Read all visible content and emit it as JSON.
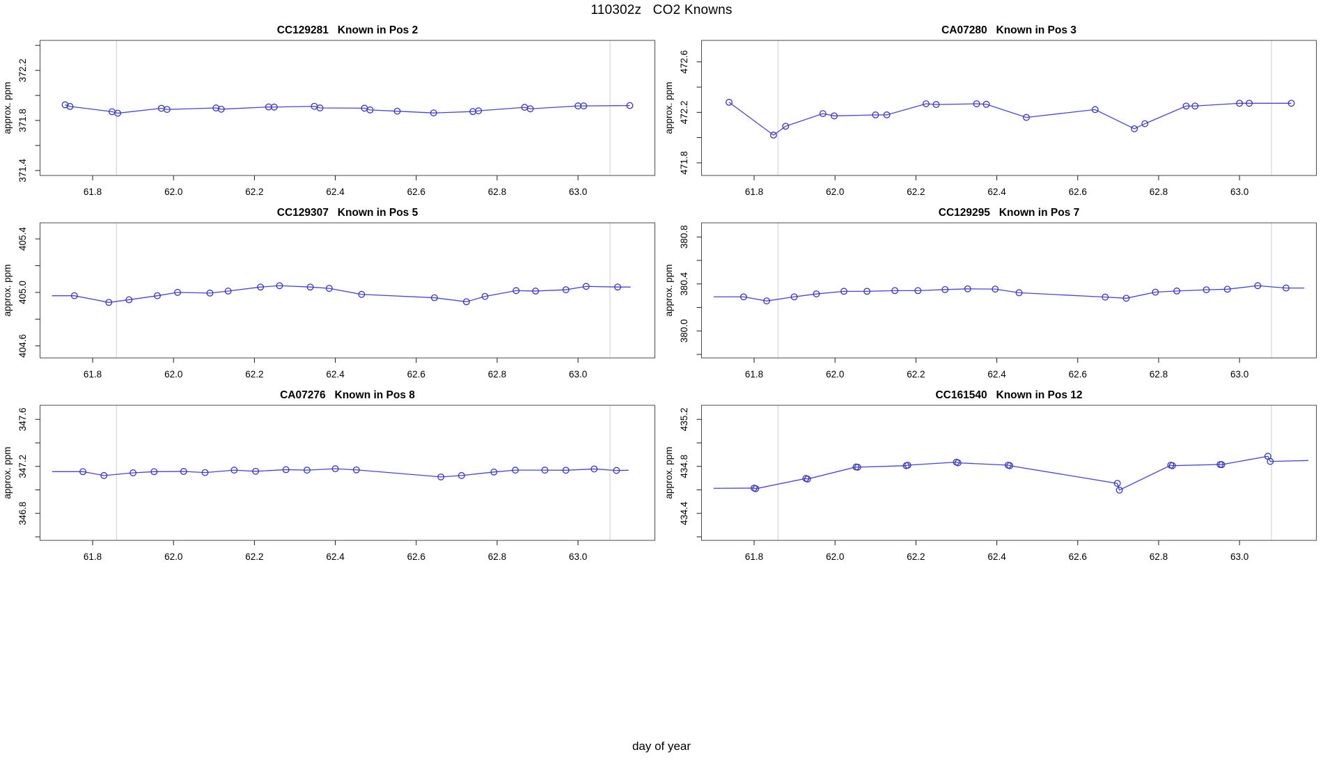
{
  "figure": {
    "title": "110302z   CO2 Knowns",
    "xlabel": "day of year",
    "background": "#ffffff"
  },
  "style": {
    "line_color": "#4343de",
    "marker_color": "#3333cf",
    "ref_line_color": "#d6d6d6",
    "frame_color": "#4a4a4a",
    "tick_color": "#1a1a1a",
    "text_color": "#000000"
  },
  "chart_data": [
    {
      "type": "line",
      "title": "CC129281   Known in Pos 2",
      "ylabel": "approx. ppm",
      "xlabel": "day of year",
      "grid": false,
      "legend": null,
      "xlim": [
        61.67,
        63.19
      ],
      "ylim": [
        371.36,
        372.44
      ],
      "x_ticks": [
        61.8,
        62.0,
        62.2,
        62.4,
        62.6,
        62.8,
        63.0
      ],
      "y_ticks_labeled": [
        371.4,
        371.8,
        372.2
      ],
      "y_tick_step": 0.2,
      "ref_lines_x": [
        61.859,
        63.079
      ],
      "lead": null,
      "tail": null,
      "points": [
        [
          61.732,
          371.925
        ],
        [
          61.744,
          371.912
        ],
        [
          61.848,
          371.87
        ],
        [
          61.862,
          371.858
        ],
        [
          61.97,
          371.897
        ],
        [
          61.984,
          371.888
        ],
        [
          62.105,
          371.9
        ],
        [
          62.118,
          371.89
        ],
        [
          62.235,
          371.908
        ],
        [
          62.249,
          371.907
        ],
        [
          62.348,
          371.913
        ],
        [
          62.362,
          371.9
        ],
        [
          62.472,
          371.898
        ],
        [
          62.486,
          371.884
        ],
        [
          62.553,
          371.874
        ],
        [
          62.643,
          371.86
        ],
        [
          62.74,
          371.871
        ],
        [
          62.754,
          371.877
        ],
        [
          62.868,
          371.905
        ],
        [
          62.882,
          371.893
        ],
        [
          63.0,
          371.916
        ],
        [
          63.014,
          371.916
        ],
        [
          63.128,
          371.919
        ]
      ]
    },
    {
      "type": "line",
      "title": "CA07280   Known in Pos 3",
      "ylabel": "approx. ppm",
      "xlabel": "day of year",
      "grid": false,
      "legend": null,
      "xlim": [
        61.67,
        63.19
      ],
      "ylim": [
        471.7,
        472.77
      ],
      "x_ticks": [
        61.8,
        62.0,
        62.2,
        62.4,
        62.6,
        62.8,
        63.0
      ],
      "y_ticks_labeled": [
        471.8,
        472.2,
        472.6
      ],
      "y_tick_step": 0.2,
      "ref_lines_x": [
        61.859,
        63.079
      ],
      "lead": null,
      "tail": null,
      "points": [
        [
          61.738,
          472.28
        ],
        [
          61.848,
          472.02
        ],
        [
          61.878,
          472.09
        ],
        [
          61.97,
          472.19
        ],
        [
          61.998,
          472.172
        ],
        [
          62.1,
          472.18
        ],
        [
          62.128,
          472.18
        ],
        [
          62.225,
          472.268
        ],
        [
          62.25,
          472.262
        ],
        [
          62.35,
          472.268
        ],
        [
          62.374,
          472.264
        ],
        [
          62.473,
          472.16
        ],
        [
          62.643,
          472.222
        ],
        [
          62.74,
          472.07
        ],
        [
          62.766,
          472.11
        ],
        [
          62.868,
          472.25
        ],
        [
          62.89,
          472.25
        ],
        [
          63.0,
          472.272
        ],
        [
          63.024,
          472.272
        ],
        [
          63.128,
          472.272
        ]
      ]
    },
    {
      "type": "line",
      "title": "CC129307   Known in Pos 5",
      "ylabel": "approx. ppm",
      "xlabel": "day of year",
      "grid": false,
      "legend": null,
      "xlim": [
        61.67,
        63.19
      ],
      "ylim": [
        404.51,
        405.52
      ],
      "x_ticks": [
        61.8,
        62.0,
        62.2,
        62.4,
        62.6,
        62.8,
        63.0
      ],
      "y_ticks_labeled": [
        404.6,
        405.0,
        405.4
      ],
      "y_tick_step": 0.2,
      "ref_lines_x": [
        61.859,
        63.079
      ],
      "lead": [
        61.7,
        404.975
      ],
      "tail": [
        63.13,
        405.04
      ],
      "points": [
        [
          61.755,
          404.975
        ],
        [
          61.84,
          404.925
        ],
        [
          61.89,
          404.945
        ],
        [
          61.96,
          404.975
        ],
        [
          62.01,
          405.0
        ],
        [
          62.09,
          404.995
        ],
        [
          62.135,
          405.01
        ],
        [
          62.215,
          405.04
        ],
        [
          62.262,
          405.05
        ],
        [
          62.338,
          405.04
        ],
        [
          62.385,
          405.03
        ],
        [
          62.465,
          404.985
        ],
        [
          62.645,
          404.96
        ],
        [
          62.724,
          404.93
        ],
        [
          62.77,
          404.97
        ],
        [
          62.847,
          405.013
        ],
        [
          62.895,
          405.01
        ],
        [
          62.97,
          405.02
        ],
        [
          63.02,
          405.045
        ],
        [
          63.098,
          405.04
        ]
      ]
    },
    {
      "type": "line",
      "title": "CC129295   Known in Pos 7",
      "ylabel": "approx. ppm",
      "xlabel": "day of year",
      "grid": false,
      "legend": null,
      "xlim": [
        61.67,
        63.19
      ],
      "ylim": [
        379.77,
        380.92
      ],
      "x_ticks": [
        61.8,
        62.0,
        62.2,
        62.4,
        62.6,
        62.8,
        63.0
      ],
      "y_ticks_labeled": [
        380.0,
        380.4,
        380.8
      ],
      "y_tick_step": 0.2,
      "ref_lines_x": [
        61.859,
        63.079
      ],
      "lead": [
        61.7,
        380.29
      ],
      "tail": [
        63.16,
        380.365
      ],
      "points": [
        [
          61.774,
          380.29
        ],
        [
          61.831,
          380.255
        ],
        [
          61.899,
          380.29
        ],
        [
          61.954,
          380.315
        ],
        [
          62.022,
          380.337
        ],
        [
          62.079,
          380.337
        ],
        [
          62.148,
          380.343
        ],
        [
          62.205,
          380.343
        ],
        [
          62.272,
          380.352
        ],
        [
          62.328,
          380.358
        ],
        [
          62.396,
          380.356
        ],
        [
          62.455,
          380.325
        ],
        [
          62.668,
          380.288
        ],
        [
          62.72,
          380.278
        ],
        [
          62.792,
          380.33
        ],
        [
          62.845,
          380.34
        ],
        [
          62.918,
          380.35
        ],
        [
          62.97,
          380.355
        ],
        [
          63.045,
          380.385
        ],
        [
          63.115,
          380.365
        ]
      ]
    },
    {
      "type": "line",
      "title": "CA07276   Known in Pos 8",
      "ylabel": "approx. ppm",
      "xlabel": "day of year",
      "grid": false,
      "legend": null,
      "xlim": [
        61.67,
        63.19
      ],
      "ylim": [
        346.57,
        347.72
      ],
      "x_ticks": [
        61.8,
        62.0,
        62.2,
        62.4,
        62.6,
        62.8,
        63.0
      ],
      "y_ticks_labeled": [
        346.8,
        347.2,
        347.6
      ],
      "y_tick_step": 0.2,
      "ref_lines_x": [
        61.859,
        63.079
      ],
      "lead": [
        61.7,
        347.155
      ],
      "tail": [
        63.125,
        347.167
      ],
      "points": [
        [
          61.776,
          347.155
        ],
        [
          61.828,
          347.122
        ],
        [
          61.9,
          347.145
        ],
        [
          61.952,
          347.155
        ],
        [
          62.025,
          347.157
        ],
        [
          62.078,
          347.147
        ],
        [
          62.15,
          347.168
        ],
        [
          62.203,
          347.158
        ],
        [
          62.278,
          347.172
        ],
        [
          62.33,
          347.168
        ],
        [
          62.4,
          347.18
        ],
        [
          62.452,
          347.17
        ],
        [
          62.661,
          347.11
        ],
        [
          62.712,
          347.122
        ],
        [
          62.792,
          347.152
        ],
        [
          62.845,
          347.168
        ],
        [
          62.918,
          347.168
        ],
        [
          62.97,
          347.167
        ],
        [
          63.04,
          347.178
        ],
        [
          63.095,
          347.165
        ]
      ]
    },
    {
      "type": "line",
      "title": "CC161540   Known in Pos 12",
      "ylabel": "approx. ppm",
      "xlabel": "day of year",
      "grid": false,
      "legend": null,
      "xlim": [
        61.67,
        63.19
      ],
      "ylim": [
        434.17,
        435.32
      ],
      "x_ticks": [
        61.8,
        62.0,
        62.2,
        62.4,
        62.6,
        62.8,
        63.0
      ],
      "y_ticks_labeled": [
        434.4,
        434.8,
        435.2
      ],
      "y_tick_step": 0.2,
      "ref_lines_x": [
        61.859,
        63.079
      ],
      "lead": [
        61.7,
        434.613
      ],
      "tail": [
        63.17,
        434.85
      ],
      "points": [
        [
          61.8,
          434.615
        ],
        [
          61.804,
          434.61
        ],
        [
          61.928,
          434.697
        ],
        [
          61.932,
          434.692
        ],
        [
          62.052,
          434.795
        ],
        [
          62.056,
          434.793
        ],
        [
          62.176,
          434.806
        ],
        [
          62.18,
          434.81
        ],
        [
          62.3,
          434.836
        ],
        [
          62.304,
          434.83
        ],
        [
          62.428,
          434.81
        ],
        [
          62.432,
          434.806
        ],
        [
          62.698,
          434.655
        ],
        [
          62.703,
          434.598
        ],
        [
          62.83,
          434.81
        ],
        [
          62.834,
          434.806
        ],
        [
          62.952,
          434.816
        ],
        [
          62.956,
          434.815
        ],
        [
          63.07,
          434.886
        ],
        [
          63.076,
          434.842
        ]
      ]
    }
  ]
}
